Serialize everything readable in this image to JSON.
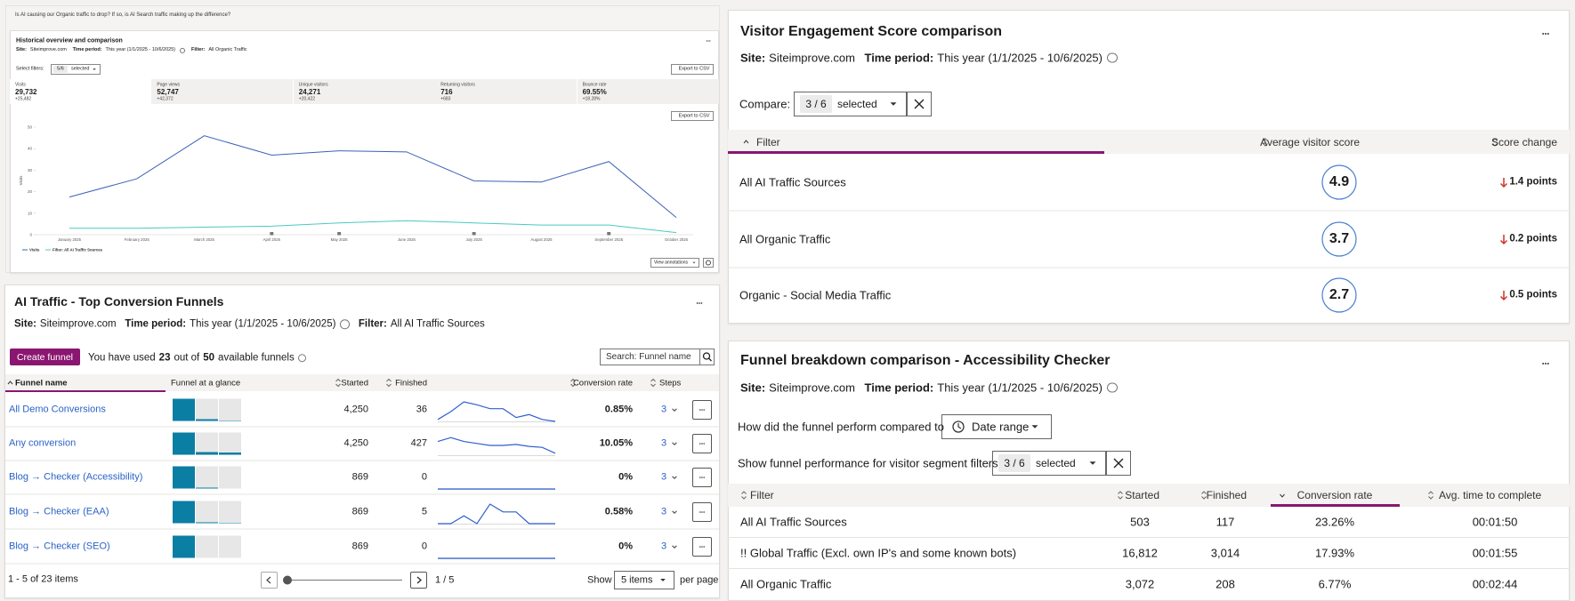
{
  "historical": {
    "question": "Is AI causing our Organic traffic to drop? If so, is AI Search traffic making up the difference?",
    "title": "Historical overview and comparison",
    "meta": {
      "site_label": "Site:",
      "site": "Siteimprove.com",
      "period_label": "Time period:",
      "period": "This year (1/1/2025 - 10/6/2025)",
      "filter_label": "Filter:",
      "filter": "All Organic Traffic"
    },
    "select_filters": "Select filters:",
    "selection": "5/6",
    "selected": "selected",
    "export": "Export to CSV",
    "metrics": [
      {
        "label": "Visits",
        "value": "29,732",
        "change": "+25,482"
      },
      {
        "label": "Page views",
        "value": "52,747",
        "change": "+42,372"
      },
      {
        "label": "Unique visitors",
        "value": "24,271",
        "change": "+20,422"
      },
      {
        "label": "Returning visitors",
        "value": "716",
        "change": "+683"
      },
      {
        "label": "Bounce rate",
        "value": "69.55%",
        "change": "+18.28%"
      }
    ],
    "chart": {
      "type": "line",
      "y_label": "Visits",
      "categories": [
        "January 2025",
        "February 2025",
        "March 2025",
        "April 2025",
        "May 2025",
        "June 2025",
        "July 2025",
        "August 2025",
        "September 2025",
        "October 2025"
      ],
      "series": [
        {
          "name": "Visits",
          "color": "#3b62b5",
          "values": [
            17.5,
            26,
            46,
            37,
            39,
            38.5,
            25,
            24.5,
            34,
            8
          ]
        },
        {
          "name": "Filter: All AI Traffic Sources",
          "color": "#49c9c2",
          "values": [
            3,
            3,
            3.5,
            4,
            5.5,
            6.5,
            5.5,
            4.5,
            4.5,
            1
          ]
        }
      ],
      "ylim": [
        0,
        50
      ],
      "yticks": [
        0,
        10,
        20,
        30,
        40,
        50
      ]
    },
    "view_annotations": "View annotations"
  },
  "funnels": {
    "title": "AI Traffic - Top Conversion Funnels",
    "meta": {
      "site_label": "Site:",
      "site": "Siteimprove.com",
      "period_label": "Time period:",
      "period": "This year (1/1/2025 - 10/6/2025)",
      "filter_label": "Filter:",
      "filter": "All AI Traffic Sources"
    },
    "create": "Create funnel",
    "usage": {
      "pre": "You have used",
      "used": "23",
      "mid": "out of",
      "total": "50",
      "post": "available funnels"
    },
    "search": "Search: Funnel name",
    "columns": [
      "Funnel name",
      "Funnel at a glance",
      "Started",
      "Finished",
      "Conversion rate",
      "Steps"
    ],
    "rows": [
      {
        "name": "All Demo Conversions",
        "glance": [
          100,
          8,
          2
        ],
        "started": "4,250",
        "finished": "36",
        "trend": [
          0.1,
          0.5,
          1,
          0.85,
          0.65,
          0.65,
          0.2,
          0.35,
          0.1,
          0
        ],
        "conversion": "0.85%",
        "steps": "3"
      },
      {
        "name": "Any conversion",
        "glance": [
          100,
          12,
          10
        ],
        "started": "4,250",
        "finished": "427",
        "trend": [
          0.7,
          0.9,
          0.7,
          0.6,
          0.5,
          0.5,
          0.55,
          0.45,
          0.4,
          0.1
        ],
        "conversion": "10.05%",
        "steps": "3"
      },
      {
        "name": "Blog → Checker (Accessibility)",
        "glance": [
          100,
          4,
          0
        ],
        "started": "869",
        "finished": "0",
        "trend": [
          0,
          0,
          0,
          0,
          0,
          0,
          0,
          0,
          0,
          0
        ],
        "conversion": "0%",
        "steps": "3"
      },
      {
        "name": "Blog → Checker (EAA)",
        "glance": [
          100,
          4,
          2
        ],
        "started": "869",
        "finished": "5",
        "trend": [
          0,
          0,
          0.4,
          0,
          1,
          0.6,
          0.6,
          0,
          0,
          0
        ],
        "conversion": "0.58%",
        "steps": "3"
      },
      {
        "name": "Blog → Checker (SEO)",
        "glance": [
          100,
          0,
          0
        ],
        "started": "869",
        "finished": "0",
        "trend": [
          0,
          0,
          0,
          0,
          0,
          0,
          0,
          0,
          0,
          0
        ],
        "conversion": "0%",
        "steps": "3"
      }
    ],
    "footer": {
      "range": "1 - 5 of 23 items",
      "page": "1 / 5",
      "show": "Show",
      "per_page_value": "5 items",
      "per_page": "per page"
    }
  },
  "engagement": {
    "title": "Visitor Engagement Score comparison",
    "meta": {
      "site_label": "Site:",
      "site": "Siteimprove.com",
      "period_label": "Time period:",
      "period": "This year (1/1/2025 - 10/6/2025)"
    },
    "compare": "Compare:",
    "selection": "3 / 6",
    "selected": "selected",
    "columns": [
      "Filter",
      "Average visitor score",
      "Score change"
    ],
    "rows": [
      {
        "filter": "All AI Traffic Sources",
        "score": "4.9",
        "change": "1.4 points"
      },
      {
        "filter": "All Organic Traffic",
        "score": "3.7",
        "change": "0.2 points"
      },
      {
        "filter": "Organic - Social Media Traffic",
        "score": "2.7",
        "change": "0.5 points"
      }
    ]
  },
  "breakdown": {
    "title": "Funnel breakdown comparison - Accessibility Checker",
    "meta": {
      "site_label": "Site:",
      "site": "Siteimprove.com",
      "period_label": "Time period:",
      "period": "This year (1/1/2025 - 10/6/2025)"
    },
    "compare_prompt": "How did the funnel perform compared to",
    "date_range": "Date range",
    "segment_prompt": "Show funnel performance for visitor segment filters",
    "selection": "3 / 6",
    "selected": "selected",
    "columns": [
      "Filter",
      "Started",
      "Finished",
      "Conversion rate",
      "Avg. time to complete"
    ],
    "rows": [
      [
        "All AI Traffic Sources",
        "503",
        "117",
        "23.26%",
        "00:01:50"
      ],
      [
        "!! Global Traffic (Excl. own IP's and some known bots)",
        "16,812",
        "3,014",
        "17.93%",
        "00:01:55"
      ],
      [
        "All Organic Traffic",
        "3,072",
        "208",
        "6.77%",
        "00:02:44"
      ]
    ]
  }
}
